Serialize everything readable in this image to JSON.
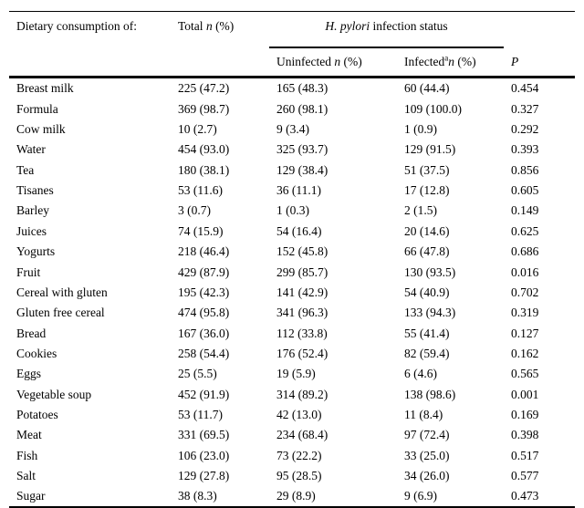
{
  "page": {
    "background_color": "#ffffff",
    "text_color": "#000000",
    "rule_color": "#000000"
  },
  "table": {
    "header": {
      "dietary": "Dietary consumption of:",
      "total": {
        "word": "Total",
        "n": "n",
        "pct": "(%)"
      },
      "group": {
        "italic": "H. pylori",
        "rest": " infection status"
      },
      "uninfected": {
        "word": "Uninfected",
        "n": "n",
        "pct": "(%)"
      },
      "infected": {
        "word": "Infected",
        "sup": "a",
        "n": "n",
        "pct": "(%)"
      },
      "p": "P"
    },
    "rows": [
      {
        "food": "Breast milk",
        "total": "225 (47.2)",
        "uninfected": "165 (48.3)",
        "infected": "60 (44.4)",
        "p": "0.454"
      },
      {
        "food": "Formula",
        "total": "369 (98.7)",
        "uninfected": "260 (98.1)",
        "infected": "109 (100.0)",
        "p": "0.327"
      },
      {
        "food": "Cow milk",
        "total": "10 (2.7)",
        "uninfected": "9 (3.4)",
        "infected": "1 (0.9)",
        "p": "0.292"
      },
      {
        "food": "Water",
        "total": "454 (93.0)",
        "uninfected": "325 (93.7)",
        "infected": "129 (91.5)",
        "p": "0.393"
      },
      {
        "food": "Tea",
        "total": "180 (38.1)",
        "uninfected": "129 (38.4)",
        "infected": "51 (37.5)",
        "p": "0.856"
      },
      {
        "food": "Tisanes",
        "total": "53 (11.6)",
        "uninfected": "36 (11.1)",
        "infected": "17 (12.8)",
        "p": "0.605"
      },
      {
        "food": "Barley",
        "total": "3 (0.7)",
        "uninfected": "1 (0.3)",
        "infected": "2 (1.5)",
        "p": "0.149"
      },
      {
        "food": "Juices",
        "total": "74 (15.9)",
        "uninfected": "54 (16.4)",
        "infected": "20 (14.6)",
        "p": "0.625"
      },
      {
        "food": "Yogurts",
        "total": "218 (46.4)",
        "uninfected": "152 (45.8)",
        "infected": "66 (47.8)",
        "p": "0.686"
      },
      {
        "food": "Fruit",
        "total": "429 (87.9)",
        "uninfected": "299 (85.7)",
        "infected": "130 (93.5)",
        "p": "0.016"
      },
      {
        "food": "Cereal with gluten",
        "total": "195 (42.3)",
        "uninfected": "141 (42.9)",
        "infected": "54 (40.9)",
        "p": "0.702"
      },
      {
        "food": "Gluten free cereal",
        "total": "474 (95.8)",
        "uninfected": "341 (96.3)",
        "infected": "133 (94.3)",
        "p": "0.319"
      },
      {
        "food": "Bread",
        "total": "167 (36.0)",
        "uninfected": "112 (33.8)",
        "infected": "55 (41.4)",
        "p": "0.127"
      },
      {
        "food": "Cookies",
        "total": "258 (54.4)",
        "uninfected": "176 (52.4)",
        "infected": "82 (59.4)",
        "p": "0.162"
      },
      {
        "food": "Eggs",
        "total": "25 (5.5)",
        "uninfected": "19 (5.9)",
        "infected": "6 (4.6)",
        "p": "0.565"
      },
      {
        "food": "Vegetable soup",
        "total": "452 (91.9)",
        "uninfected": "314 (89.2)",
        "infected": "138 (98.6)",
        "p": "0.001"
      },
      {
        "food": "Potatoes",
        "total": "53 (11.7)",
        "uninfected": "42 (13.0)",
        "infected": "11 (8.4)",
        "p": "0.169"
      },
      {
        "food": "Meat",
        "total": "331 (69.5)",
        "uninfected": "234 (68.4)",
        "infected": "97 (72.4)",
        "p": "0.398"
      },
      {
        "food": "Fish",
        "total": "106 (23.0)",
        "uninfected": "73 (22.2)",
        "infected": "33 (25.0)",
        "p": "0.517"
      },
      {
        "food": "Salt",
        "total": "129 (27.8)",
        "uninfected": "95 (28.5)",
        "infected": "34 (26.0)",
        "p": "0.577"
      },
      {
        "food": "Sugar",
        "total": "38 (8.3)",
        "uninfected": "29 (8.9)",
        "infected": "9 (6.9)",
        "p": "0.473"
      }
    ]
  }
}
